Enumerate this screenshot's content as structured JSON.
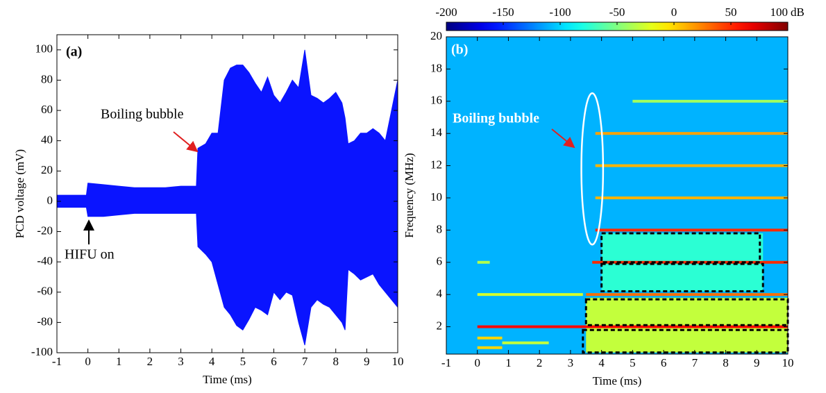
{
  "chart_data": [
    {
      "type": "area",
      "title": "(a)",
      "xlabel": "Time (ms)",
      "ylabel": "PCD voltage (mV)",
      "xlim": [
        -1,
        10
      ],
      "ylim": [
        -100,
        110
      ],
      "xticks": [
        -1,
        0,
        1,
        2,
        3,
        4,
        5,
        6,
        7,
        8,
        9,
        10
      ],
      "yticks": [
        -100,
        -80,
        -60,
        -40,
        -20,
        0,
        20,
        40,
        60,
        80,
        100
      ],
      "x": [
        -1,
        -0.5,
        -0.05,
        0,
        0.5,
        1,
        1.5,
        2,
        2.5,
        3,
        3.5,
        3.55,
        3.8,
        4,
        4.2,
        4.4,
        4.6,
        4.8,
        5,
        5.2,
        5.4,
        5.6,
        5.8,
        6,
        6.2,
        6.4,
        6.6,
        6.8,
        7,
        7.2,
        7.4,
        7.6,
        7.8,
        8,
        8.2,
        8.3,
        8.4,
        8.6,
        8.8,
        9,
        9.2,
        9.4,
        9.6,
        9.8,
        10
      ],
      "series": [
        {
          "color": "#0a14ff",
          "values": [
            4,
            4,
            4,
            12,
            11,
            10,
            9,
            9,
            9,
            10,
            10,
            35,
            38,
            45,
            45,
            80,
            88,
            90,
            90,
            85,
            78,
            72,
            82,
            70,
            65,
            72,
            80,
            75,
            100,
            70,
            68,
            65,
            68,
            72,
            65,
            55,
            38,
            40,
            45,
            45,
            48,
            45,
            40,
            60,
            80
          ]
        },
        {
          "color": "#0a14ff",
          "values": [
            -4,
            -4,
            -4,
            -10,
            -10,
            -9,
            -8,
            -8,
            -8,
            -8,
            -8,
            -30,
            -35,
            -40,
            -55,
            -70,
            -75,
            -82,
            -85,
            -78,
            -70,
            -72,
            -75,
            -60,
            -65,
            -60,
            -62,
            -80,
            -95,
            -70,
            -65,
            -68,
            -70,
            -75,
            -80,
            -85,
            -45,
            -48,
            -52,
            -50,
            -48,
            -55,
            -60,
            -65,
            -70
          ]
        }
      ],
      "annotations": [
        "Boiling bubble",
        "HIFU on"
      ]
    },
    {
      "type": "spectrogram",
      "title": "(b)",
      "xlabel": "Time (ms)",
      "ylabel": "Frequency (MHz)",
      "xlim": [
        -1,
        10
      ],
      "ylim": [
        0.3,
        20
      ],
      "xticks": [
        -1,
        0,
        1,
        2,
        3,
        4,
        5,
        6,
        7,
        8,
        9,
        10
      ],
      "yticks": [
        2,
        4,
        6,
        8,
        10,
        12,
        14,
        16,
        18,
        20
      ],
      "colormap": "jet",
      "zlim": [
        -200,
        100
      ],
      "zticks": [
        -200,
        -150,
        -100,
        -50,
        0,
        50,
        100
      ],
      "zunit": "dB",
      "background_level": -110,
      "broadband": [
        {
          "start": 3.5,
          "end": 10,
          "low": 0.4,
          "high": 3.8,
          "level": -30
        },
        {
          "start": 4,
          "end": 9.2,
          "low": 4.2,
          "high": 7.8,
          "level": -75
        }
      ],
      "harmonics": [
        {
          "frequency": 2,
          "start": 0,
          "end": 10,
          "level": 60
        },
        {
          "frequency": 4,
          "start": 0,
          "end": 3.4,
          "level": -25
        },
        {
          "frequency": 4,
          "start": 3.5,
          "end": 10,
          "level": 30
        },
        {
          "frequency": 6,
          "start": 0,
          "end": 0.4,
          "level": -35
        },
        {
          "frequency": 6,
          "start": 3.7,
          "end": 10,
          "level": 50
        },
        {
          "frequency": 8,
          "start": 3.8,
          "end": 10,
          "level": 50
        },
        {
          "frequency": 10,
          "start": 3.8,
          "end": 10,
          "level": 10
        },
        {
          "frequency": 12,
          "start": 3.8,
          "end": 10,
          "level": 10
        },
        {
          "frequency": 14,
          "start": 3.8,
          "end": 10,
          "level": 15
        },
        {
          "frequency": 16,
          "start": 5,
          "end": 10,
          "level": -40
        },
        {
          "frequency": 1.3,
          "start": 0,
          "end": 0.8,
          "level": 0
        },
        {
          "frequency": 0.7,
          "start": 0,
          "end": 0.8,
          "level": 0
        },
        {
          "frequency": 1,
          "start": 0.8,
          "end": 2.3,
          "level": -30
        }
      ],
      "highlight_boxes": [
        {
          "start": 4,
          "end": 9.1,
          "low": 6,
          "high": 7.8
        },
        {
          "start": 4,
          "end": 9.2,
          "low": 4.2,
          "high": 5.9
        },
        {
          "start": 3.5,
          "end": 10,
          "low": 2.1,
          "high": 3.7
        },
        {
          "start": 3.4,
          "end": 10,
          "low": 0.4,
          "high": 1.8
        }
      ],
      "ellipse": {
        "x": 3.7,
        "y": 11.8,
        "rx": 0.35,
        "ry": 4.7
      },
      "annotations": [
        "Boiling bubble"
      ]
    }
  ]
}
